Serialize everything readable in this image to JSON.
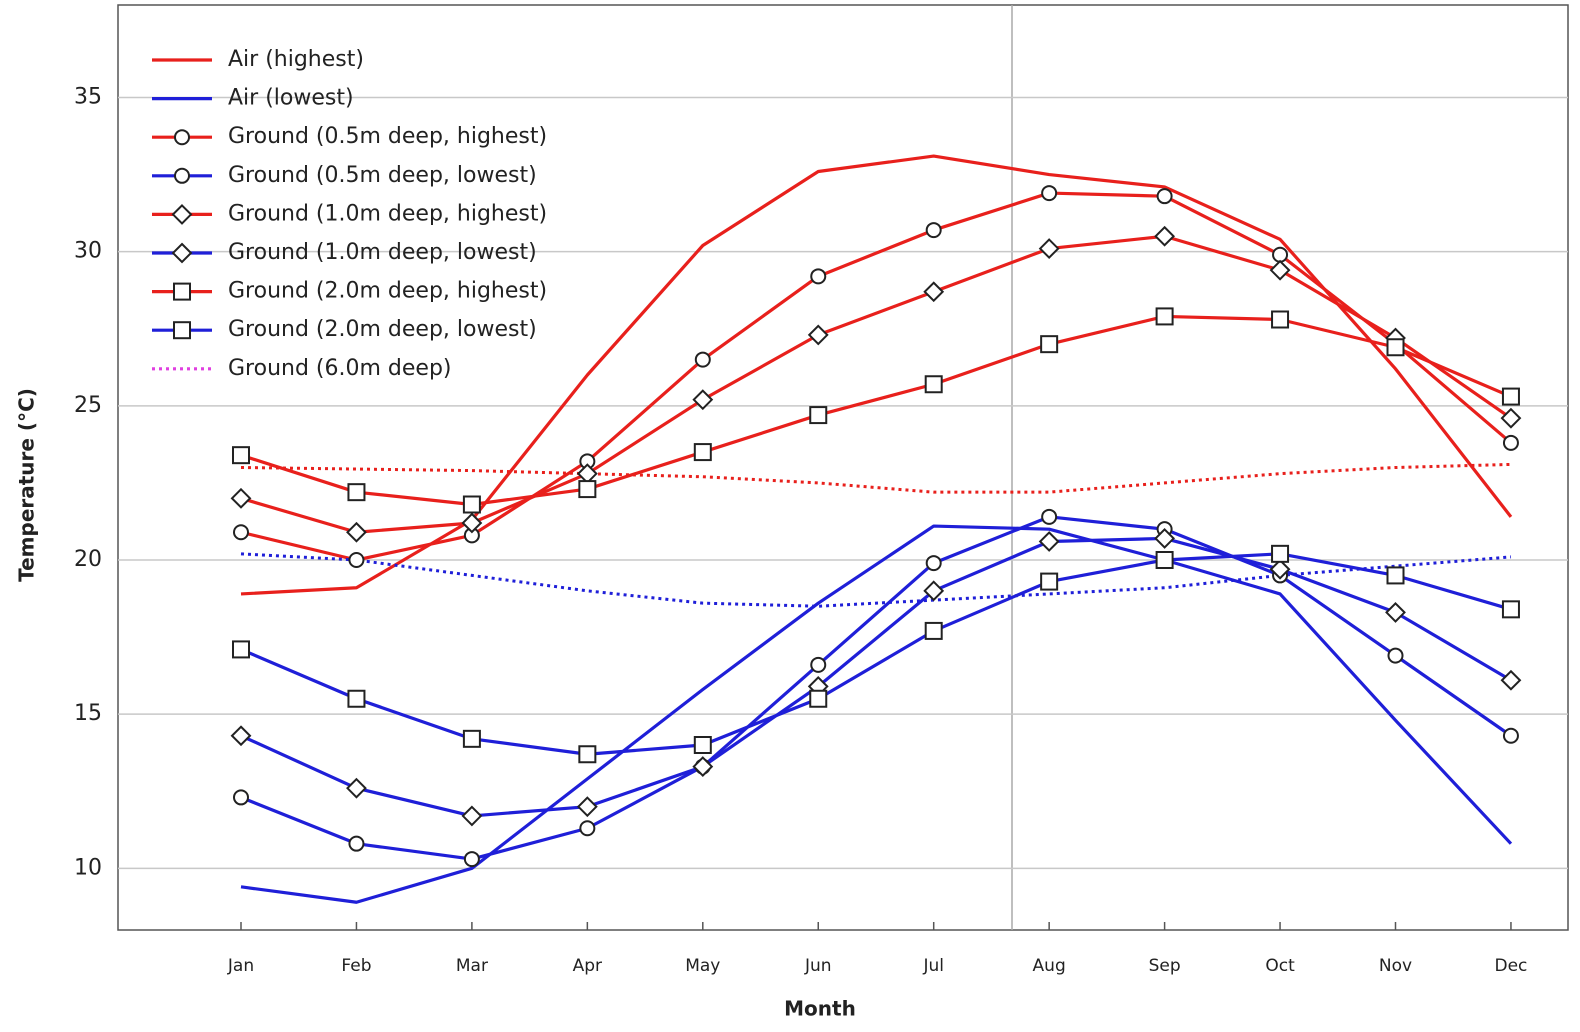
{
  "chart_data": {
    "type": "line",
    "x_label": "Month",
    "y_label": "Temperature (°C)",
    "categories": [
      "Jan",
      "Feb",
      "Mar",
      "Apr",
      "May",
      "Jun",
      "Jul",
      "Aug",
      "Sep",
      "Oct",
      "Nov",
      "Dec"
    ],
    "ylim": [
      8,
      38
    ],
    "yticks": [
      10,
      15,
      20,
      25,
      30,
      35
    ],
    "grid": true,
    "legend": "top-left",
    "series": [
      {
        "name": "Air (highest)",
        "color": "#e8201c",
        "marker": null,
        "values": [
          18.9,
          19.1,
          21.3,
          26.0,
          30.2,
          32.6,
          33.1,
          32.5,
          32.1,
          30.4,
          26.2,
          21.4
        ]
      },
      {
        "name": "Air (lowest)",
        "color": "#1f1fd8",
        "marker": null,
        "values": [
          9.4,
          8.9,
          10.0,
          12.9,
          15.8,
          18.6,
          21.1,
          21.0,
          20.0,
          18.9,
          14.8,
          10.8
        ]
      },
      {
        "name": "Ground (0.5m deep, highest)",
        "color": "#e8201c",
        "marker": "circle",
        "values": [
          20.9,
          20.0,
          20.8,
          23.2,
          26.5,
          29.2,
          30.7,
          31.9,
          31.8,
          29.9,
          27.0,
          23.8
        ]
      },
      {
        "name": "Ground (0.5m deep, lowest)",
        "color": "#1f1fd8",
        "marker": "circle",
        "values": [
          12.3,
          10.8,
          10.3,
          11.3,
          13.3,
          16.6,
          19.9,
          21.4,
          21.0,
          19.5,
          16.9,
          14.3
        ]
      },
      {
        "name": "Ground (1.0m deep, highest)",
        "color": "#e8201c",
        "marker": "diamond",
        "values": [
          22.0,
          20.9,
          21.2,
          22.8,
          25.2,
          27.3,
          28.7,
          30.1,
          30.5,
          29.4,
          27.2,
          24.6
        ]
      },
      {
        "name": "Ground (1.0m deep, lowest)",
        "color": "#1f1fd8",
        "marker": "diamond",
        "values": [
          14.3,
          12.6,
          11.7,
          12.0,
          13.3,
          15.9,
          19.0,
          20.6,
          20.7,
          19.7,
          18.3,
          16.1
        ]
      },
      {
        "name": "Ground (2.0m deep, highest)",
        "color": "#e8201c",
        "marker": "square",
        "values": [
          23.4,
          22.2,
          21.8,
          22.3,
          23.5,
          24.7,
          25.7,
          27.0,
          27.9,
          27.8,
          26.9,
          25.3
        ]
      },
      {
        "name": "Ground (2.0m deep, lowest)",
        "color": "#1f1fd8",
        "marker": "square",
        "values": [
          17.1,
          15.5,
          14.2,
          13.7,
          14.0,
          15.5,
          17.7,
          19.3,
          20.0,
          20.2,
          19.5,
          18.4
        ]
      },
      {
        "name": "Ground (6.0m deep)",
        "color": "#e040e0",
        "marker": null,
        "dashed": true,
        "lines": [
          {
            "color": "#e8201c",
            "values": [
              23.0,
              22.95,
              22.9,
              22.8,
              22.7,
              22.5,
              22.2,
              22.2,
              22.5,
              22.8,
              23.0,
              23.1
            ]
          },
          {
            "color": "#1f1fd8",
            "values": [
              20.2,
              20.0,
              19.5,
              19.0,
              18.6,
              18.5,
              18.7,
              18.9,
              19.1,
              19.5,
              19.8,
              20.1
            ]
          }
        ]
      }
    ]
  }
}
